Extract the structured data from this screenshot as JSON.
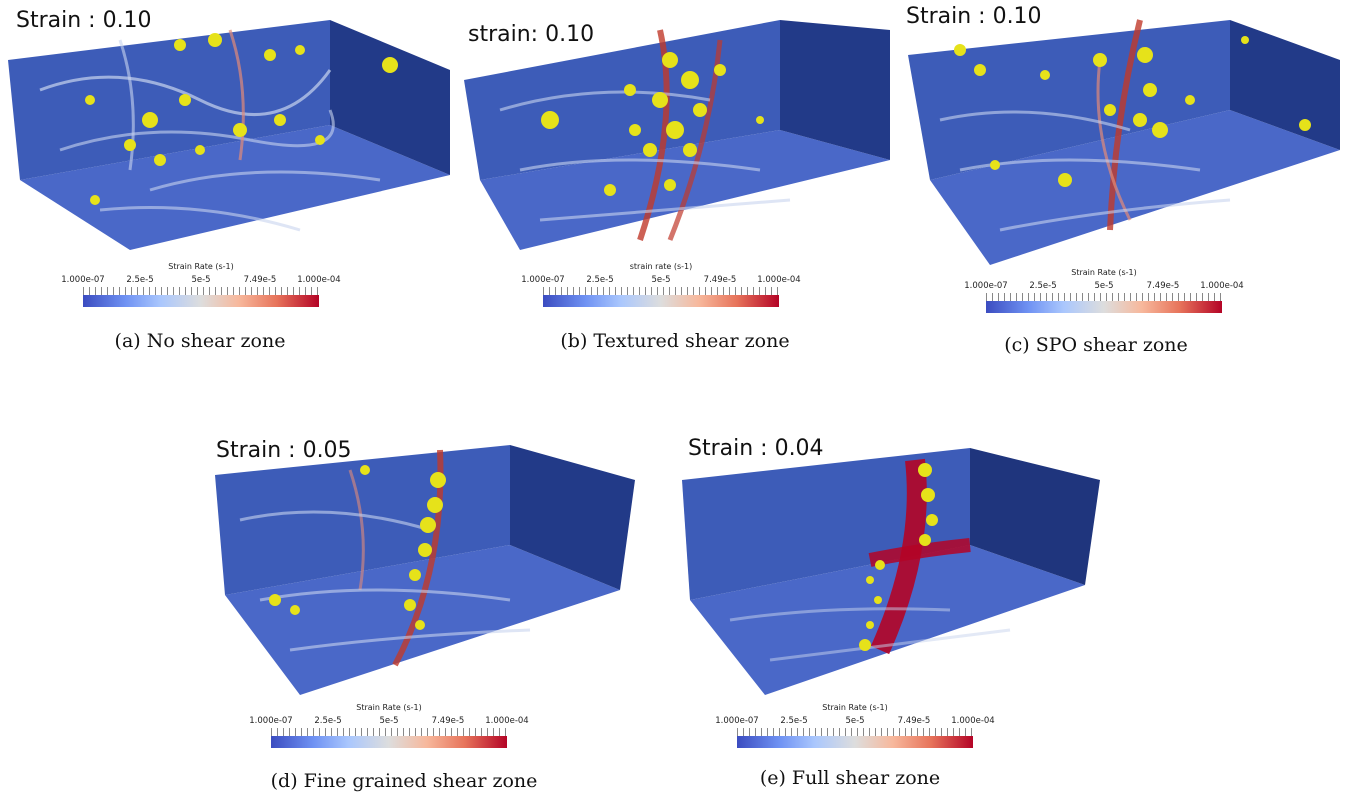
{
  "panels": [
    {
      "strain_label": "Strain : 0.10",
      "colorbar": {
        "title": "Strain Rate (s-1)",
        "ticks": [
          "1.000e-07",
          "2.5e-5",
          "5e-5",
          "7.49e-5",
          "1.000e-04"
        ]
      },
      "caption": "(a) No shear zone"
    },
    {
      "strain_label": "strain: 0.10",
      "colorbar": {
        "title": "strain rate (s-1)",
        "ticks": [
          "1.000e-07",
          "2.5e-5",
          "5e-5",
          "7.49e-5",
          "1.000e-04"
        ]
      },
      "caption": "(b) Textured shear zone"
    },
    {
      "strain_label": "Strain : 0.10",
      "colorbar": {
        "title": "Strain Rate (s-1)",
        "ticks": [
          "1.000e-07",
          "2.5e-5",
          "5e-5",
          "7.49e-5",
          "1.000e-04"
        ]
      },
      "caption": "(c) SPO shear zone"
    },
    {
      "strain_label": "Strain : 0.05",
      "colorbar": {
        "title": "Strain Rate (s-1)",
        "ticks": [
          "1.000e-07",
          "2.5e-5",
          "5e-5",
          "7.49e-5",
          "1.000e-04"
        ]
      },
      "caption": "(d) Fine grained shear zone"
    },
    {
      "strain_label": "Strain : 0.04",
      "colorbar": {
        "title": "Strain Rate (s-1)",
        "ticks": [
          "1.000e-07",
          "2.5e-5",
          "5e-5",
          "7.49e-5",
          "1.000e-04"
        ]
      },
      "caption": "(e) Full shear zone"
    }
  ],
  "colormap": {
    "low": "#3b4cc0",
    "mid": "#dddddd",
    "high": "#b40426"
  },
  "inclusion_color": "#e6e21a"
}
